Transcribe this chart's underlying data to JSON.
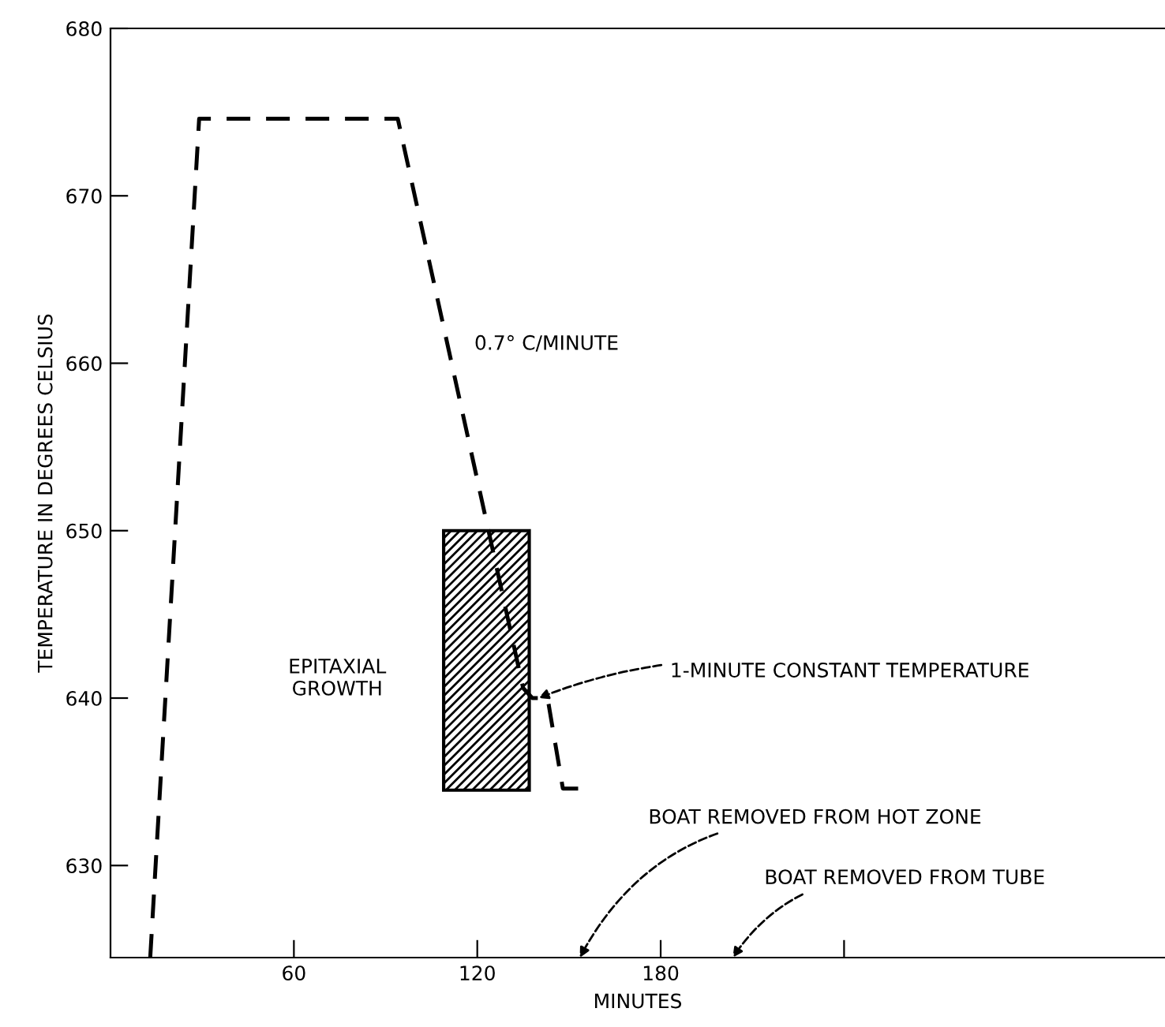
{
  "chart_data": {
    "type": "line",
    "xlabel": "MINUTES",
    "ylabel": "TEMPERATURE IN DEGREES CELSIUS",
    "xlim": [
      0,
      345
    ],
    "ylim": [
      624.5,
      680
    ],
    "xticks": [
      60,
      120,
      180,
      {
        "value": 240,
        "label": null
      }
    ],
    "yticks": [
      630,
      640,
      650,
      660,
      670,
      680
    ],
    "grid": false,
    "marker": "none",
    "line_style": "dashed",
    "series": [
      {
        "color": "#000000",
        "x": [
          13,
          29,
          94,
          135,
          138,
          143,
          148,
          153
        ],
        "values": [
          624.5,
          674.6,
          674.6,
          640.6,
          640,
          640,
          634.6,
          634.6
        ]
      },
      {
        "type": "bar",
        "color": "#000000",
        "x": [
          123
        ],
        "values": [
          15.5
        ],
        "base": [
          634.5
        ]
      }
    ],
    "annotations": [
      "0.7° C/MINUTE",
      "EPITAXIAL\nGROWTH",
      {
        "text": "1-MINUTE CONSTANT TEMPERATURE",
        "x": 140,
        "y": 640
      },
      "BOAT REMOVED FROM HOT ZONE",
      "BOAT REMOVED FROM TUBE"
    ]
  }
}
